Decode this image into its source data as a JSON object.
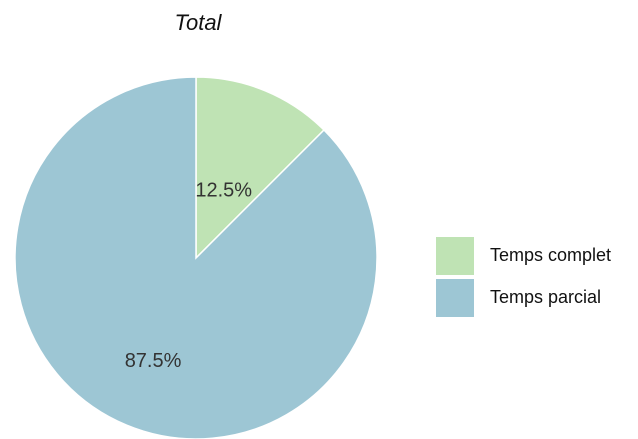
{
  "chart_data": {
    "type": "pie",
    "title": "Total",
    "slices": [
      {
        "name": "Temps complet",
        "value": 12.5,
        "label": "12.5%",
        "color": "#bfe3b4"
      },
      {
        "name": "Temps parcial",
        "value": 87.5,
        "label": "87.5%",
        "color": "#9dc6d4"
      }
    ],
    "legend_position": "right",
    "start_angle": "12 o'clock",
    "direction": "clockwise"
  }
}
